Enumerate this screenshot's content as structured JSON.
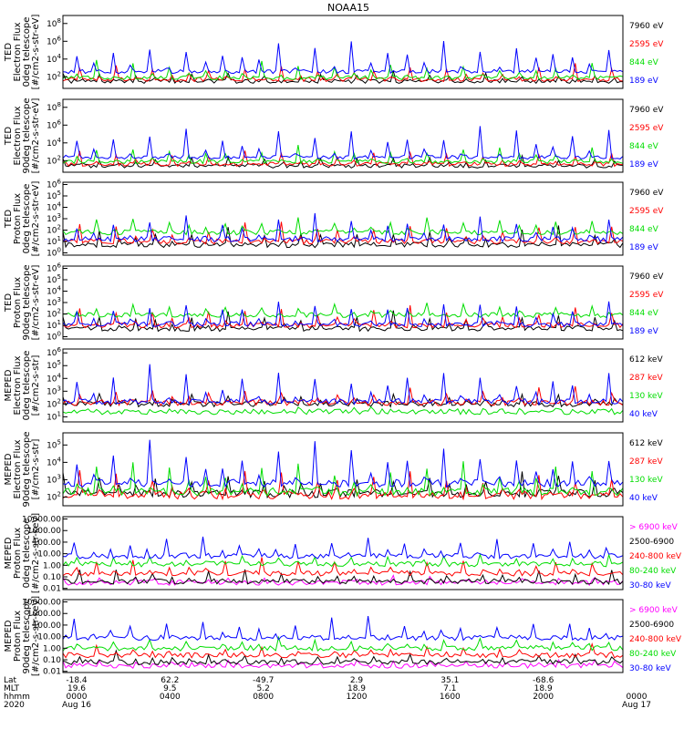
{
  "title": "NOAA15",
  "colors": {
    "blue": "#0000ff",
    "green": "#00dd00",
    "red": "#ff0000",
    "black": "#000000",
    "magenta": "#ff00ff"
  },
  "chart_data": [
    {
      "type": "line",
      "scale": "log",
      "ylabel": [
        "TED",
        "Electron Flux",
        "0deg telescope",
        "[#/cm2-s-str-eV]"
      ],
      "ytick_labels": [
        "10^2",
        "10^4",
        "10^6",
        "10^8"
      ],
      "ylim_log10": [
        0.7,
        8.9
      ],
      "series": [
        {
          "name": "7960 eV",
          "color": "black",
          "base_log10": 1.5,
          "peak_log10": 2.6
        },
        {
          "name": "2595 eV",
          "color": "red",
          "base_log10": 1.7,
          "peak_log10": 3.4
        },
        {
          "name": "844 eV",
          "color": "green",
          "base_log10": 1.9,
          "peak_log10": 4.0
        },
        {
          "name": "189 eV",
          "color": "blue",
          "base_log10": 2.6,
          "peak_log10": 6.6
        }
      ]
    },
    {
      "type": "line",
      "scale": "log",
      "ylabel": [
        "TED",
        "Electron Flux",
        "90deg telescope",
        "[#/cm2-s-str-eV]"
      ],
      "ytick_labels": [
        "10^2",
        "10^4",
        "10^6",
        "10^8"
      ],
      "ylim_log10": [
        0.7,
        8.9
      ],
      "series": [
        {
          "name": "7960 eV",
          "color": "black",
          "base_log10": 1.4,
          "peak_log10": 2.5
        },
        {
          "name": "2595 eV",
          "color": "red",
          "base_log10": 1.6,
          "peak_log10": 3.3
        },
        {
          "name": "844 eV",
          "color": "green",
          "base_log10": 1.9,
          "peak_log10": 3.8
        },
        {
          "name": "189 eV",
          "color": "blue",
          "base_log10": 2.4,
          "peak_log10": 6.2
        }
      ]
    },
    {
      "type": "line",
      "scale": "log",
      "ylabel": [
        "TED",
        "Proton Flux",
        "0deg telescope",
        "[#/cm2-s-str-eV]"
      ],
      "ytick_labels": [
        "10^0",
        "10^1",
        "10^2",
        "10^3",
        "10^4",
        "10^5",
        "10^6"
      ],
      "ylim_log10": [
        -0.2,
        6.2
      ],
      "series": [
        {
          "name": "7960 eV",
          "color": "black",
          "base_log10": 0.7,
          "peak_log10": 2.4
        },
        {
          "name": "2595 eV",
          "color": "red",
          "base_log10": 1.0,
          "peak_log10": 2.8
        },
        {
          "name": "844 eV",
          "color": "green",
          "base_log10": 1.8,
          "peak_log10": 3.2
        },
        {
          "name": "189 eV",
          "color": "blue",
          "base_log10": 1.2,
          "peak_log10": 3.6
        }
      ]
    },
    {
      "type": "line",
      "scale": "log",
      "ylabel": [
        "TED",
        "Proton Flux",
        "90deg telescope",
        "[#/cm2-s-str-eV]"
      ],
      "ytick_labels": [
        "10^0",
        "10^1",
        "10^2",
        "10^3",
        "10^4",
        "10^5",
        "10^6"
      ],
      "ylim_log10": [
        -0.2,
        6.2
      ],
      "series": [
        {
          "name": "7960 eV",
          "color": "black",
          "base_log10": 0.7,
          "peak_log10": 2.3
        },
        {
          "name": "2595 eV",
          "color": "red",
          "base_log10": 1.0,
          "peak_log10": 2.8
        },
        {
          "name": "844 eV",
          "color": "green",
          "base_log10": 1.9,
          "peak_log10": 3.0
        },
        {
          "name": "189 eV",
          "color": "blue",
          "base_log10": 1.1,
          "peak_log10": 3.4
        }
      ]
    },
    {
      "type": "line",
      "scale": "log",
      "ylabel": [
        "MEPED",
        "Electron Flux",
        "0deg telescope",
        "[#/cm2-s-str]"
      ],
      "ytick_labels": [
        "10^1",
        "10^2",
        "10^3",
        "10^4",
        "10^5",
        "10^6"
      ],
      "ylim_log10": [
        0.6,
        6.3
      ],
      "series": [
        {
          "name": "612 keV",
          "color": "black",
          "base_log10": 2.0,
          "peak_log10": 3.0
        },
        {
          "name": "287 keV",
          "color": "red",
          "base_log10": 2.1,
          "peak_log10": 3.3
        },
        {
          "name": "130 keV",
          "color": "green",
          "base_log10": 1.4,
          "peak_log10": 1.8
        },
        {
          "name": "40 keV",
          "color": "blue",
          "base_log10": 2.2,
          "peak_log10": 5.0
        }
      ]
    },
    {
      "type": "line",
      "scale": "log",
      "ylabel": [
        "MEPED",
        "Electron Flux",
        "90deg telescope",
        "[#/cm2-s-str]"
      ],
      "ytick_labels": [
        "10^2",
        "10^3",
        "10^4",
        "10^5"
      ],
      "ylim_log10": [
        1.5,
        5.7
      ],
      "series": [
        {
          "name": "612 keV",
          "color": "black",
          "base_log10": 2.2,
          "peak_log10": 3.6
        },
        {
          "name": "287 keV",
          "color": "red",
          "base_log10": 2.1,
          "peak_log10": 3.6
        },
        {
          "name": "130 keV",
          "color": "green",
          "base_log10": 2.3,
          "peak_log10": 4.2
        },
        {
          "name": "40 keV",
          "color": "blue",
          "base_log10": 2.8,
          "peak_log10": 5.2
        }
      ]
    },
    {
      "type": "line",
      "scale": "log",
      "ylabel": [
        "MEPED",
        "Proton Flux",
        "0deg telescope",
        "[#/cm2-s-str-keV]"
      ],
      "ytick_labels": [
        "0.01",
        "0.10",
        "1.00",
        "10.00",
        "100.00",
        "1000.00",
        "10000.00"
      ],
      "ylim_log10": [
        -2.1,
        4.2
      ],
      "series": [
        {
          "name": "> 6900 keV",
          "color": "magenta",
          "base_log10": -1.5,
          "peak_log10": -1.0
        },
        {
          "name": "2500-6900",
          "color": "black",
          "base_log10": -1.4,
          "peak_log10": -0.4
        },
        {
          "name": "240-800 keV",
          "color": "red",
          "base_log10": -0.7,
          "peak_log10": 0.6
        },
        {
          "name": "80-240 keV",
          "color": "green",
          "base_log10": 0.1,
          "peak_log10": 1.0
        },
        {
          "name": "30-80 keV",
          "color": "blue",
          "base_log10": 0.8,
          "peak_log10": 2.7
        }
      ]
    },
    {
      "type": "line",
      "scale": "log",
      "ylabel": [
        "MEPED",
        "Proton Flux",
        "90deg telescope",
        "[#/cm2-s-str-keV]"
      ],
      "ytick_labels": [
        "0.01",
        "0.10",
        "1.00",
        "10.00",
        "100.00",
        "1000.00",
        "10000.00"
      ],
      "ylim_log10": [
        -2.1,
        4.2
      ],
      "series": [
        {
          "name": "> 6900 keV",
          "color": "magenta",
          "base_log10": -1.5,
          "peak_log10": -1.0
        },
        {
          "name": "2500-6900",
          "color": "black",
          "base_log10": -1.2,
          "peak_log10": -0.4
        },
        {
          "name": "240-800 keV",
          "color": "red",
          "base_log10": -0.6,
          "peak_log10": 0.3
        },
        {
          "name": "80-240 keV",
          "color": "green",
          "base_log10": 0.0,
          "peak_log10": 1.0
        },
        {
          "name": "30-80 keV",
          "color": "blue",
          "base_log10": 0.9,
          "peak_log10": 2.8
        }
      ]
    }
  ],
  "bottom_axis": {
    "row_labels": [
      "Lat",
      "MLT",
      "hhmm",
      "2020"
    ],
    "columns": [
      {
        "lat": "-18.4",
        "mlt": "19.6",
        "hhmm": "0000",
        "date": "Aug 16"
      },
      {
        "lat": "62.2",
        "mlt": "9.5",
        "hhmm": "0400",
        "date": ""
      },
      {
        "lat": "-49.7",
        "mlt": "5.2",
        "hhmm": "0800",
        "date": ""
      },
      {
        "lat": "2.9",
        "mlt": "18.9",
        "hhmm": "1200",
        "date": ""
      },
      {
        "lat": "35.1",
        "mlt": "7.1",
        "hhmm": "1600",
        "date": ""
      },
      {
        "lat": "-68.6",
        "mlt": "18.9",
        "hhmm": "2000",
        "date": ""
      },
      {
        "lat": "",
        "mlt": "",
        "hhmm": "0000",
        "date": "Aug 17"
      }
    ]
  }
}
